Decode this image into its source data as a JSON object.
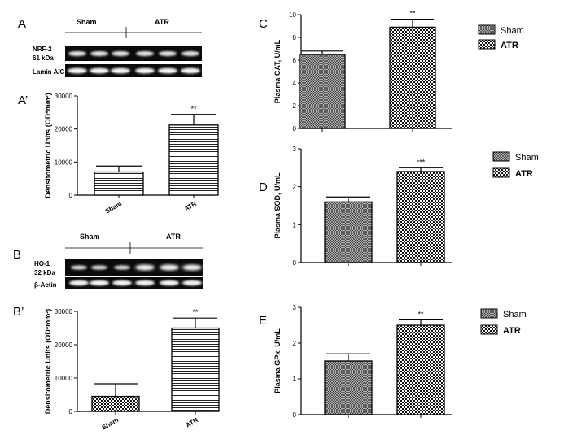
{
  "panels": {
    "A": "A",
    "A_prime": "A’",
    "B": "B",
    "B_prime": "B’",
    "C": "C",
    "D": "D",
    "E": "E"
  },
  "blots": [
    {
      "id": "nrf2",
      "groups": [
        "Sham",
        "ATR"
      ],
      "row_labels": [
        "NRF-2\n61 kDa",
        "Lamin A/C"
      ]
    },
    {
      "id": "ho1",
      "groups": [
        "Sham",
        "ATR"
      ],
      "row_labels": [
        "HO-1\n32 kDa",
        "β-Actin"
      ]
    }
  ],
  "chart_data": [
    {
      "id": "A_prime",
      "type": "bar",
      "ylabel": "Densitometric Units (OD*mm²)",
      "categories": [
        "Sham",
        "ATR"
      ],
      "values": [
        7000,
        21200
      ],
      "errors": [
        1800,
        3200
      ],
      "significance": [
        "",
        "**"
      ],
      "patterns": [
        "hlines",
        "hlines"
      ],
      "ylim": [
        0,
        30000
      ],
      "yticks": [
        0,
        10000,
        20000,
        30000
      ],
      "ytick_labels": [
        "0",
        "10000",
        "20000",
        "30000"
      ],
      "xlabels_rotated": true
    },
    {
      "id": "B_prime",
      "type": "bar",
      "ylabel": "Densitometric Units (OD*mm²)",
      "categories": [
        "Sham",
        "ATR"
      ],
      "values": [
        4500,
        25000
      ],
      "errors": [
        3800,
        3000
      ],
      "significance": [
        "",
        "**"
      ],
      "patterns": [
        "checker",
        "hlines"
      ],
      "ylim": [
        0,
        30000
      ],
      "yticks": [
        0,
        10000,
        20000,
        30000
      ],
      "ytick_labels": [
        "0",
        "10000",
        "20000",
        "30000"
      ],
      "xlabels_rotated": true
    },
    {
      "id": "C",
      "type": "bar",
      "ylabel": "Plasma CAT, U/mL",
      "categories": [
        "Sham",
        "ATR"
      ],
      "values": [
        6.5,
        8.9
      ],
      "errors": [
        0.3,
        0.7
      ],
      "significance": [
        "",
        "**"
      ],
      "patterns": [
        "cross",
        "checker"
      ],
      "ylim": [
        0,
        10
      ],
      "yticks": [
        0,
        2,
        4,
        6,
        8,
        10
      ],
      "ytick_labels": [
        "0",
        "2",
        "4",
        "6",
        "8",
        "10"
      ],
      "legend": [
        "Sham",
        "ATR"
      ],
      "legend_position": "right"
    },
    {
      "id": "D",
      "type": "bar",
      "ylabel": "Plasma SOD, U/mL",
      "categories": [
        "Sham",
        "ATR"
      ],
      "values": [
        1.6,
        2.4
      ],
      "errors": [
        0.13,
        0.1
      ],
      "significance": [
        "",
        "***"
      ],
      "patterns": [
        "cross",
        "checker"
      ],
      "ylim": [
        0,
        3
      ],
      "yticks": [
        0,
        1,
        2,
        3
      ],
      "ytick_labels": [
        "0",
        "1",
        "2",
        "3"
      ],
      "legend": [
        "Sham",
        "ATR"
      ],
      "legend_position": "right"
    },
    {
      "id": "E",
      "type": "bar",
      "ylabel": "Plasma GPx, U/mL",
      "categories": [
        "Sham",
        "ATR"
      ],
      "values": [
        1.5,
        2.5
      ],
      "errors": [
        0.2,
        0.15
      ],
      "significance": [
        "",
        "**"
      ],
      "patterns": [
        "cross",
        "checker"
      ],
      "ylim": [
        0,
        3
      ],
      "yticks": [
        0,
        1,
        2,
        3
      ],
      "ytick_labels": [
        "0",
        "1",
        "2",
        "3"
      ],
      "legend": [
        "Sham",
        "ATR"
      ],
      "legend_position": "right"
    }
  ]
}
